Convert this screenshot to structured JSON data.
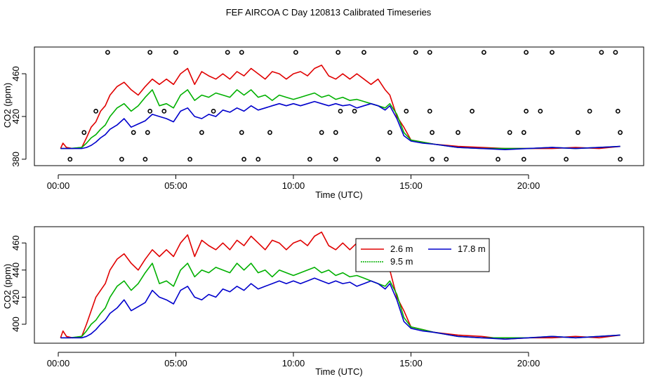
{
  "title": "FEF AIRCOA C  Day 120813  Calibrated Timeseries",
  "colors": {
    "series_a": "#e00000",
    "series_b": "#00b000",
    "series_c": "#0000cc",
    "axis": "#000000",
    "background": "#ffffff"
  },
  "chart_data": [
    {
      "type": "line",
      "panel": "top",
      "title": "",
      "xlabel": "Time (UTC)",
      "ylabel": "CO2 (ppm)",
      "xlim": [
        0,
        24
      ],
      "ylim": [
        374,
        485
      ],
      "x_ticks": [
        0,
        5,
        10,
        15,
        20
      ],
      "x_tick_labels": [
        "00:00",
        "05:00",
        "10:00",
        "15:00",
        "20:00"
      ],
      "y_ticks": [
        380,
        420,
        460
      ],
      "y_tick_labels": [
        "380",
        "420",
        "460"
      ],
      "series": [
        {
          "name": "2.6 m",
          "color": "#e00000",
          "x": [
            0.1,
            0.2,
            0.35,
            0.6,
            1,
            1.2,
            1.4,
            1.6,
            1.8,
            2.0,
            2.2,
            2.5,
            2.8,
            3.1,
            3.4,
            3.7,
            4.0,
            4.3,
            4.6,
            4.9,
            5.2,
            5.5,
            5.8,
            6.1,
            6.4,
            6.7,
            7.0,
            7.3,
            7.6,
            7.9,
            8.2,
            8.5,
            8.8,
            9.1,
            9.4,
            9.7,
            10.0,
            10.3,
            10.6,
            10.9,
            11.2,
            11.5,
            11.8,
            12.1,
            12.4,
            12.7,
            13.0,
            13.3,
            13.6,
            13.9,
            14.1,
            14.4,
            14.7,
            15.0,
            15.5,
            16,
            17,
            18,
            19,
            20,
            21,
            22,
            23,
            23.9
          ],
          "y": [
            390,
            395,
            391,
            390,
            391,
            400,
            410,
            415,
            425,
            430,
            440,
            448,
            452,
            445,
            440,
            448,
            455,
            450,
            455,
            450,
            460,
            465,
            450,
            462,
            458,
            455,
            460,
            455,
            462,
            458,
            465,
            460,
            455,
            462,
            460,
            455,
            460,
            462,
            458,
            465,
            468,
            458,
            455,
            460,
            455,
            460,
            455,
            450,
            455,
            445,
            440,
            420,
            410,
            398,
            396,
            394,
            392,
            391,
            390,
            390,
            390,
            391,
            390,
            392
          ]
        },
        {
          "name": "9.5 m",
          "color": "#00b000",
          "x": [
            0.1,
            0.5,
            1,
            1.2,
            1.4,
            1.6,
            1.8,
            2.0,
            2.2,
            2.5,
            2.8,
            3.1,
            3.4,
            3.7,
            4.0,
            4.3,
            4.6,
            4.9,
            5.2,
            5.5,
            5.8,
            6.1,
            6.4,
            6.7,
            7.0,
            7.3,
            7.6,
            7.9,
            8.2,
            8.5,
            8.8,
            9.1,
            9.4,
            9.7,
            10.0,
            10.3,
            10.6,
            10.9,
            11.2,
            11.5,
            11.8,
            12.1,
            12.4,
            12.7,
            13.0,
            13.3,
            13.6,
            13.9,
            14.1,
            14.4,
            14.7,
            15.0,
            15.5,
            16,
            17,
            18,
            19,
            20,
            21,
            22,
            23,
            23.9
          ],
          "y": [
            390,
            390,
            391,
            395,
            400,
            403,
            408,
            412,
            420,
            428,
            432,
            425,
            430,
            438,
            445,
            430,
            432,
            428,
            440,
            445,
            435,
            440,
            438,
            442,
            440,
            438,
            445,
            440,
            445,
            438,
            440,
            435,
            440,
            438,
            436,
            438,
            440,
            442,
            438,
            440,
            436,
            438,
            435,
            436,
            434,
            432,
            430,
            428,
            432,
            422,
            405,
            398,
            396,
            394,
            391,
            390,
            390,
            390,
            391,
            390,
            391,
            392
          ]
        },
        {
          "name": "17.8 m",
          "color": "#0000cc",
          "x": [
            0.1,
            0.5,
            1,
            1.2,
            1.4,
            1.6,
            1.8,
            2.0,
            2.2,
            2.5,
            2.8,
            3.1,
            3.4,
            3.7,
            4.0,
            4.3,
            4.6,
            4.9,
            5.2,
            5.5,
            5.8,
            6.1,
            6.4,
            6.7,
            7.0,
            7.3,
            7.6,
            7.9,
            8.2,
            8.5,
            8.8,
            9.1,
            9.4,
            9.7,
            10.0,
            10.3,
            10.6,
            10.9,
            11.2,
            11.5,
            11.8,
            12.1,
            12.4,
            12.7,
            13.0,
            13.3,
            13.6,
            13.9,
            14.1,
            14.4,
            14.7,
            15.0,
            15.5,
            16,
            17,
            18,
            19,
            20,
            21,
            22,
            23,
            23.9
          ],
          "y": [
            390,
            390,
            390,
            391,
            393,
            396,
            400,
            403,
            408,
            412,
            418,
            410,
            413,
            416,
            422,
            420,
            418,
            415,
            425,
            428,
            420,
            418,
            422,
            420,
            426,
            424,
            428,
            425,
            430,
            426,
            428,
            430,
            432,
            430,
            432,
            430,
            432,
            434,
            432,
            430,
            432,
            430,
            431,
            428,
            430,
            432,
            430,
            426,
            430,
            418,
            402,
            397,
            395,
            394,
            391,
            390,
            389,
            390,
            391,
            390,
            391,
            392
          ]
        }
      ],
      "markers": [
        {
          "x": 2.1,
          "y": 480
        },
        {
          "x": 3.9,
          "y": 480
        },
        {
          "x": 5.0,
          "y": 480
        },
        {
          "x": 7.2,
          "y": 480
        },
        {
          "x": 7.8,
          "y": 480
        },
        {
          "x": 10.1,
          "y": 480
        },
        {
          "x": 11.9,
          "y": 480
        },
        {
          "x": 13.0,
          "y": 480
        },
        {
          "x": 15.2,
          "y": 480
        },
        {
          "x": 15.8,
          "y": 480
        },
        {
          "x": 18.1,
          "y": 480
        },
        {
          "x": 19.9,
          "y": 480
        },
        {
          "x": 21.0,
          "y": 480
        },
        {
          "x": 23.1,
          "y": 480
        },
        {
          "x": 23.7,
          "y": 480
        },
        {
          "x": 1.6,
          "y": 425
        },
        {
          "x": 3.9,
          "y": 425
        },
        {
          "x": 4.5,
          "y": 425
        },
        {
          "x": 6.6,
          "y": 425
        },
        {
          "x": 12.0,
          "y": 425
        },
        {
          "x": 12.6,
          "y": 425
        },
        {
          "x": 14.8,
          "y": 425
        },
        {
          "x": 15.8,
          "y": 425
        },
        {
          "x": 17.6,
          "y": 425
        },
        {
          "x": 19.9,
          "y": 425
        },
        {
          "x": 20.5,
          "y": 425
        },
        {
          "x": 22.6,
          "y": 425
        },
        {
          "x": 23.8,
          "y": 425
        },
        {
          "x": 1.1,
          "y": 405
        },
        {
          "x": 3.2,
          "y": 405
        },
        {
          "x": 3.8,
          "y": 405
        },
        {
          "x": 6.1,
          "y": 405
        },
        {
          "x": 7.8,
          "y": 405
        },
        {
          "x": 9.0,
          "y": 405
        },
        {
          "x": 11.2,
          "y": 405
        },
        {
          "x": 11.8,
          "y": 405
        },
        {
          "x": 14.1,
          "y": 405
        },
        {
          "x": 15.9,
          "y": 405
        },
        {
          "x": 17.0,
          "y": 405
        },
        {
          "x": 19.2,
          "y": 405
        },
        {
          "x": 19.8,
          "y": 405
        },
        {
          "x": 22.1,
          "y": 405
        },
        {
          "x": 23.9,
          "y": 405
        },
        {
          "x": 0.5,
          "y": 380
        },
        {
          "x": 2.7,
          "y": 380
        },
        {
          "x": 3.7,
          "y": 380
        },
        {
          "x": 5.6,
          "y": 380
        },
        {
          "x": 7.9,
          "y": 380
        },
        {
          "x": 8.5,
          "y": 380
        },
        {
          "x": 10.7,
          "y": 380
        },
        {
          "x": 11.8,
          "y": 380
        },
        {
          "x": 13.6,
          "y": 380
        },
        {
          "x": 15.9,
          "y": 380
        },
        {
          "x": 16.5,
          "y": 380
        },
        {
          "x": 18.7,
          "y": 380
        },
        {
          "x": 19.8,
          "y": 380
        },
        {
          "x": 21.6,
          "y": 380
        },
        {
          "x": 23.9,
          "y": 380
        }
      ]
    },
    {
      "type": "line",
      "panel": "bottom",
      "title": "",
      "xlabel": "Time (UTC)",
      "ylabel": "CO2 (ppm)",
      "xlim": [
        0,
        24
      ],
      "ylim": [
        386,
        472
      ],
      "x_ticks": [
        0,
        5,
        10,
        15,
        20
      ],
      "x_tick_labels": [
        "00:00",
        "05:00",
        "10:00",
        "15:00",
        "20:00"
      ],
      "y_ticks": [
        400,
        420,
        440,
        460
      ],
      "y_tick_labels": [
        "400",
        "420",
        "440",
        "460"
      ],
      "legend": {
        "placement": "top-right",
        "entries": [
          "2.6 m",
          "17.8 m",
          "9.5 m"
        ]
      },
      "series": [
        {
          "name": "2.6 m",
          "color": "#e00000",
          "x": [
            0.1,
            0.2,
            0.35,
            0.6,
            1,
            1.2,
            1.4,
            1.6,
            1.8,
            2.0,
            2.2,
            2.5,
            2.8,
            3.1,
            3.4,
            3.7,
            4.0,
            4.3,
            4.6,
            4.9,
            5.2,
            5.5,
            5.8,
            6.1,
            6.4,
            6.7,
            7.0,
            7.3,
            7.6,
            7.9,
            8.2,
            8.5,
            8.8,
            9.1,
            9.4,
            9.7,
            10.0,
            10.3,
            10.6,
            10.9,
            11.2,
            11.5,
            11.8,
            12.1,
            12.4,
            12.7,
            13.0,
            13.3,
            13.6,
            13.9,
            14.1,
            14.4,
            14.7,
            15.0,
            15.5,
            16,
            17,
            18,
            19,
            20,
            21,
            22,
            23,
            23.9
          ],
          "y": [
            390,
            395,
            391,
            390,
            391,
            400,
            410,
            420,
            425,
            430,
            440,
            448,
            452,
            445,
            440,
            448,
            455,
            450,
            455,
            450,
            460,
            466,
            450,
            462,
            458,
            455,
            460,
            455,
            462,
            458,
            465,
            460,
            455,
            462,
            460,
            455,
            460,
            462,
            458,
            465,
            468,
            458,
            455,
            460,
            455,
            460,
            455,
            450,
            455,
            445,
            440,
            420,
            410,
            398,
            396,
            394,
            392,
            391,
            389,
            390,
            390,
            391,
            390,
            392
          ]
        },
        {
          "name": "9.5 m",
          "color": "#00b000",
          "x": [
            0.1,
            0.5,
            1,
            1.2,
            1.4,
            1.6,
            1.8,
            2.0,
            2.2,
            2.5,
            2.8,
            3.1,
            3.4,
            3.7,
            4.0,
            4.3,
            4.6,
            4.9,
            5.2,
            5.5,
            5.8,
            6.1,
            6.4,
            6.7,
            7.0,
            7.3,
            7.6,
            7.9,
            8.2,
            8.5,
            8.8,
            9.1,
            9.4,
            9.7,
            10.0,
            10.3,
            10.6,
            10.9,
            11.2,
            11.5,
            11.8,
            12.1,
            12.4,
            12.7,
            13.0,
            13.3,
            13.6,
            13.9,
            14.1,
            14.4,
            14.7,
            15.0,
            15.5,
            16,
            17,
            18,
            19,
            20,
            21,
            22,
            23,
            23.9
          ],
          "y": [
            390,
            390,
            391,
            395,
            400,
            403,
            408,
            412,
            420,
            428,
            432,
            425,
            430,
            438,
            445,
            430,
            432,
            428,
            440,
            445,
            435,
            440,
            438,
            442,
            440,
            438,
            445,
            440,
            445,
            438,
            440,
            435,
            440,
            438,
            436,
            438,
            440,
            442,
            438,
            440,
            436,
            438,
            435,
            436,
            434,
            432,
            430,
            428,
            432,
            422,
            405,
            398,
            396,
            394,
            391,
            390,
            390,
            390,
            391,
            390,
            391,
            392
          ]
        },
        {
          "name": "17.8 m",
          "color": "#0000cc",
          "x": [
            0.1,
            0.5,
            1,
            1.2,
            1.4,
            1.6,
            1.8,
            2.0,
            2.2,
            2.5,
            2.8,
            3.1,
            3.4,
            3.7,
            4.0,
            4.3,
            4.6,
            4.9,
            5.2,
            5.5,
            5.8,
            6.1,
            6.4,
            6.7,
            7.0,
            7.3,
            7.6,
            7.9,
            8.2,
            8.5,
            8.8,
            9.1,
            9.4,
            9.7,
            10.0,
            10.3,
            10.6,
            10.9,
            11.2,
            11.5,
            11.8,
            12.1,
            12.4,
            12.7,
            13.0,
            13.3,
            13.6,
            13.9,
            14.1,
            14.4,
            14.7,
            15.0,
            15.5,
            16,
            17,
            18,
            19,
            20,
            21,
            22,
            23,
            23.9
          ],
          "y": [
            390,
            390,
            390,
            391,
            393,
            396,
            400,
            403,
            408,
            412,
            418,
            410,
            413,
            416,
            425,
            420,
            418,
            415,
            425,
            428,
            420,
            418,
            422,
            420,
            426,
            424,
            428,
            425,
            430,
            426,
            428,
            430,
            432,
            430,
            432,
            430,
            432,
            434,
            432,
            430,
            432,
            430,
            431,
            428,
            430,
            432,
            430,
            426,
            430,
            418,
            402,
            397,
            395,
            394,
            391,
            390,
            389,
            390,
            391,
            390,
            391,
            392
          ]
        }
      ]
    }
  ]
}
